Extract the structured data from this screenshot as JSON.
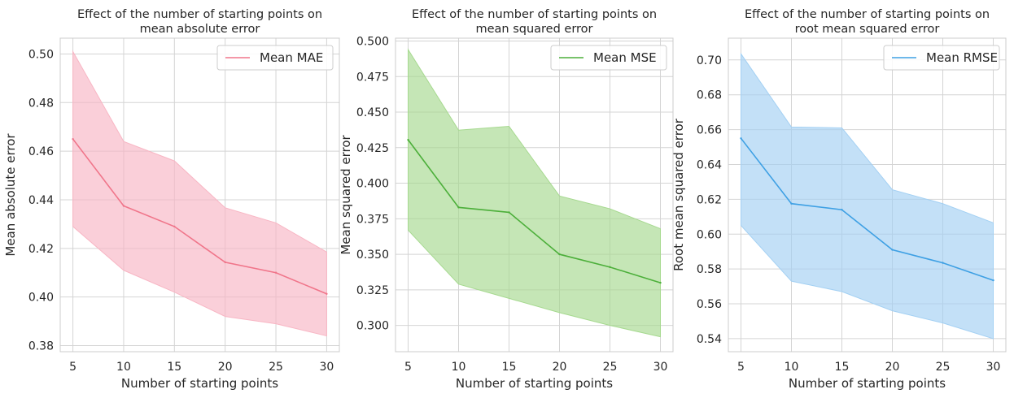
{
  "chart_data": [
    {
      "type": "line",
      "title": [
        "Effect of the number of starting points on",
        "mean absolute error"
      ],
      "xlabel": "Number of starting points",
      "ylabel": "Mean absolute error",
      "x": [
        5,
        10,
        15,
        20,
        25,
        30
      ],
      "xticks": [
        "5",
        "10",
        "15",
        "20",
        "25",
        "30"
      ],
      "xlim": [
        3.75,
        31.25
      ],
      "ylim": [
        0.3775,
        0.5065
      ],
      "yticks": [
        "0.38",
        "0.40",
        "0.42",
        "0.44",
        "0.46",
        "0.48",
        "0.50"
      ],
      "grid": true,
      "legend": "top-right",
      "color": "#f0758a",
      "band_color": "#f8b6c4",
      "series": [
        {
          "name": "Mean MAE",
          "values": [
            0.465,
            0.4375,
            0.429,
            0.4143,
            0.41,
            0.4013
          ],
          "upper": [
            0.501,
            0.464,
            0.456,
            0.4367,
            0.4305,
            0.4185
          ],
          "lower": [
            0.429,
            0.411,
            0.402,
            0.392,
            0.389,
            0.384
          ]
        }
      ]
    },
    {
      "type": "line",
      "title": [
        "Effect of the number of starting points on",
        "mean squared error"
      ],
      "xlabel": "Number of starting points",
      "ylabel": "Mean squared error",
      "x": [
        5,
        10,
        15,
        20,
        25,
        30
      ],
      "xticks": [
        "5",
        "10",
        "15",
        "20",
        "25",
        "30"
      ],
      "xlim": [
        3.75,
        31.25
      ],
      "ylim": [
        0.2815,
        0.502
      ],
      "yticks": [
        "0.300",
        "0.325",
        "0.350",
        "0.375",
        "0.400",
        "0.425",
        "0.450",
        "0.475",
        "0.500"
      ],
      "grid": true,
      "legend": "top-right",
      "color": "#4caf3a",
      "band_color": "#a6d98f",
      "series": [
        {
          "name": "Mean MSE",
          "values": [
            0.4305,
            0.383,
            0.3795,
            0.35,
            0.341,
            0.33
          ],
          "upper": [
            0.494,
            0.4373,
            0.44,
            0.391,
            0.382,
            0.368
          ],
          "lower": [
            0.367,
            0.329,
            0.319,
            0.309,
            0.3,
            0.292
          ]
        }
      ]
    },
    {
      "type": "line",
      "title": [
        "Effect of the number of starting points on",
        "root mean squared error"
      ],
      "xlabel": "Number of starting points",
      "ylabel": "Root mean squared error",
      "x": [
        5,
        10,
        15,
        20,
        25,
        30
      ],
      "xticks": [
        "5",
        "10",
        "15",
        "20",
        "25",
        "30"
      ],
      "xlim": [
        3.75,
        31.25
      ],
      "ylim": [
        0.5325,
        0.7125
      ],
      "yticks": [
        "0.54",
        "0.56",
        "0.58",
        "0.60",
        "0.62",
        "0.64",
        "0.66",
        "0.68",
        "0.70"
      ],
      "grid": true,
      "legend": "top-right",
      "color": "#3ea0e4",
      "band_color": "#a3d0f3",
      "series": [
        {
          "name": "Mean RMSE",
          "values": [
            0.655,
            0.6175,
            0.614,
            0.591,
            0.5835,
            0.5735
          ],
          "upper": [
            0.7035,
            0.6615,
            0.661,
            0.6255,
            0.6175,
            0.6065
          ],
          "lower": [
            0.605,
            0.573,
            0.567,
            0.556,
            0.549,
            0.54
          ]
        }
      ]
    }
  ]
}
